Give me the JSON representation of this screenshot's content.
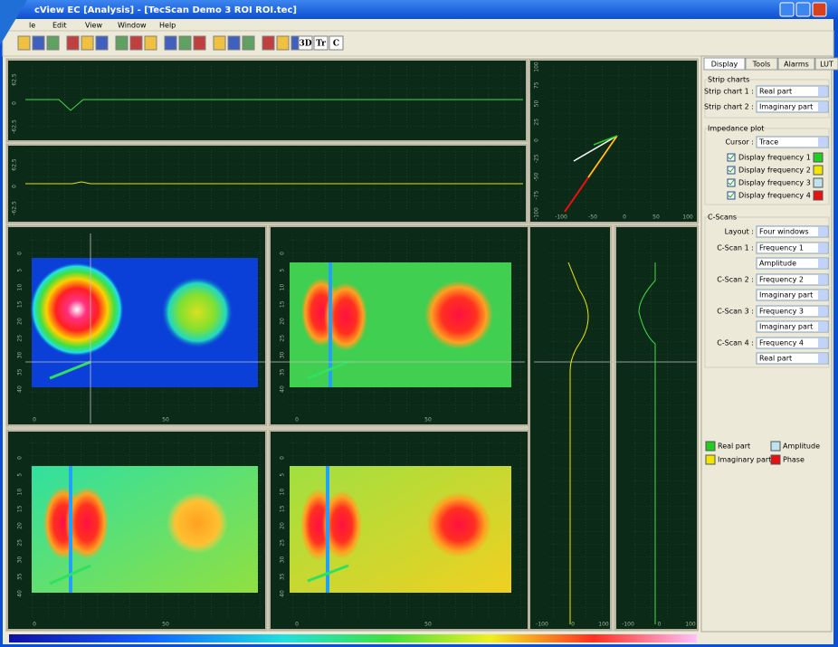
{
  "window": {
    "title": "cView EC [Analysis] - [TecScan Demo 3 ROI ROI.tec]"
  },
  "menu": [
    "le",
    "Edit",
    "View",
    "Window",
    "Help"
  ],
  "toolbar": [
    "3D",
    "Tr",
    "C"
  ],
  "plots": {
    "strip_ticks": [
      "62.5",
      "0",
      "-62.5"
    ],
    "impedance_yticks": [
      "100",
      "75",
      "50",
      "25",
      "0",
      "-25",
      "-50",
      "-75",
      "-100"
    ],
    "impedance_xticks": [
      "-100",
      "-50",
      "0",
      "50",
      "100"
    ],
    "cscan_yticks": [
      "0",
      "5",
      "10",
      "15",
      "20",
      "25",
      "30",
      "35",
      "40"
    ],
    "cscan_xticks": [
      "0",
      "50"
    ],
    "profile_xticks": [
      "-100",
      "0",
      "100"
    ]
  },
  "panel": {
    "tabs": [
      "Display",
      "Tools",
      "Alarms",
      "LUT"
    ],
    "strip_charts": {
      "title": "Strip charts",
      "rows": [
        {
          "label": "Strip chart 1 :",
          "value": "Real part"
        },
        {
          "label": "Strip chart 2 :",
          "value": "Imaginary part"
        }
      ]
    },
    "impedance": {
      "title": "Impedance plot",
      "cursor_label": "Cursor :",
      "cursor_value": "Trace",
      "frequencies": [
        {
          "label": "Display frequency 1",
          "color": "#22cc22"
        },
        {
          "label": "Display frequency 2",
          "color": "#f2e600"
        },
        {
          "label": "Display frequency 3",
          "color": "#bfe3ee"
        },
        {
          "label": "Display frequency 4",
          "color": "#e81010"
        }
      ]
    },
    "cscans": {
      "title": "C-Scans",
      "layout_label": "Layout :",
      "layout_value": "Four windows",
      "scans": [
        {
          "label": "C-Scan 1 :",
          "frequency": "Frequency 1",
          "part": "Amplitude"
        },
        {
          "label": "C-Scan 2 :",
          "frequency": "Frequency 2",
          "part": "Imaginary part"
        },
        {
          "label": "C-Scan 3 :",
          "frequency": "Frequency 3",
          "part": "Imaginary part"
        },
        {
          "label": "C-Scan 4 :",
          "frequency": "Frequency 4",
          "part": "Real part"
        }
      ]
    },
    "legend": [
      {
        "label": "Real part",
        "color": "#22cc22"
      },
      {
        "label": "Amplitude",
        "color": "#bfe3ee"
      },
      {
        "label": "Imaginary part",
        "color": "#f2e600"
      },
      {
        "label": "Phase",
        "color": "#e81010"
      }
    ]
  }
}
